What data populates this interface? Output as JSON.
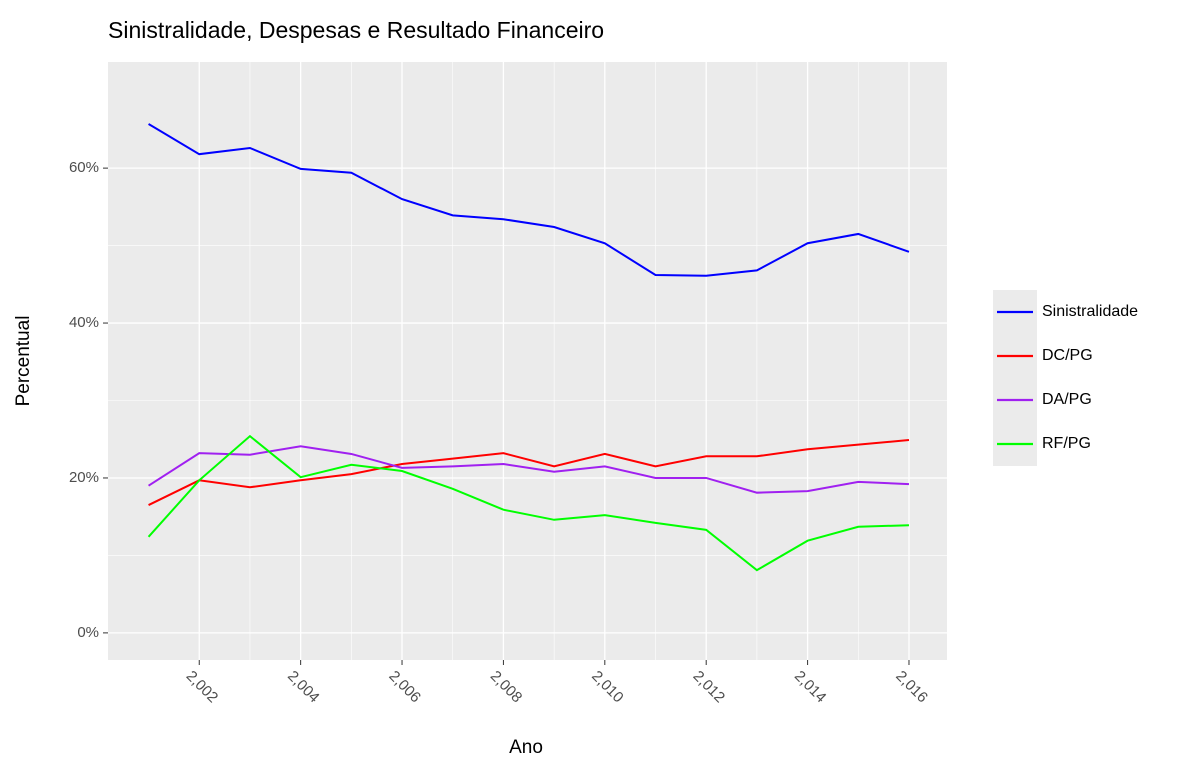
{
  "chart_data": {
    "type": "line",
    "title": "Sinistralidade, Despesas e Resultado Financeiro",
    "x_label": "Ano",
    "y_label": "Percentual",
    "x": [
      2001,
      2002,
      2003,
      2004,
      2005,
      2006,
      2007,
      2008,
      2009,
      2010,
      2011,
      2012,
      2013,
      2014,
      2015,
      2016
    ],
    "series": [
      {
        "name": "Sinistralidade",
        "color": "#0000ff",
        "values": [
          65.7,
          61.8,
          62.6,
          59.9,
          59.4,
          56.0,
          53.9,
          53.4,
          52.4,
          50.3,
          46.2,
          46.1,
          46.8,
          50.3,
          51.5,
          49.2
        ]
      },
      {
        "name": "DC/PG",
        "color": "#ff0000",
        "values": [
          16.5,
          19.7,
          18.8,
          19.7,
          20.5,
          21.8,
          22.5,
          23.2,
          21.5,
          23.1,
          21.5,
          22.8,
          22.8,
          23.7,
          24.3,
          24.9
        ]
      },
      {
        "name": "DA/PG",
        "color": "#a020f0",
        "values": [
          19.0,
          23.2,
          23.0,
          24.1,
          23.1,
          21.3,
          21.5,
          21.8,
          20.8,
          21.5,
          20.0,
          20.0,
          18.1,
          18.3,
          19.5,
          19.2
        ]
      },
      {
        "name": "RF/PG",
        "color": "#00ff00",
        "values": [
          12.4,
          19.7,
          25.4,
          20.1,
          21.7,
          20.9,
          18.6,
          15.9,
          14.6,
          15.2,
          14.2,
          13.3,
          8.1,
          11.9,
          13.7,
          13.9
        ]
      }
    ],
    "xlim": [
      2000.2,
      2016.75
    ],
    "ylim": [
      -3.5,
      73.7
    ],
    "xticks": [
      {
        "value": 2002,
        "label": "2,002"
      },
      {
        "value": 2004,
        "label": "2,004"
      },
      {
        "value": 2006,
        "label": "2,006"
      },
      {
        "value": 2008,
        "label": "2,008"
      },
      {
        "value": 2010,
        "label": "2,010"
      },
      {
        "value": 2012,
        "label": "2,012"
      },
      {
        "value": 2014,
        "label": "2,014"
      },
      {
        "value": 2016,
        "label": "2,016"
      }
    ],
    "yticks": [
      {
        "value": 0,
        "label": "0%"
      },
      {
        "value": 20,
        "label": "20%"
      },
      {
        "value": 40,
        "label": "40%"
      },
      {
        "value": 60,
        "label": "60%"
      }
    ],
    "grid": true,
    "legend": "right"
  }
}
